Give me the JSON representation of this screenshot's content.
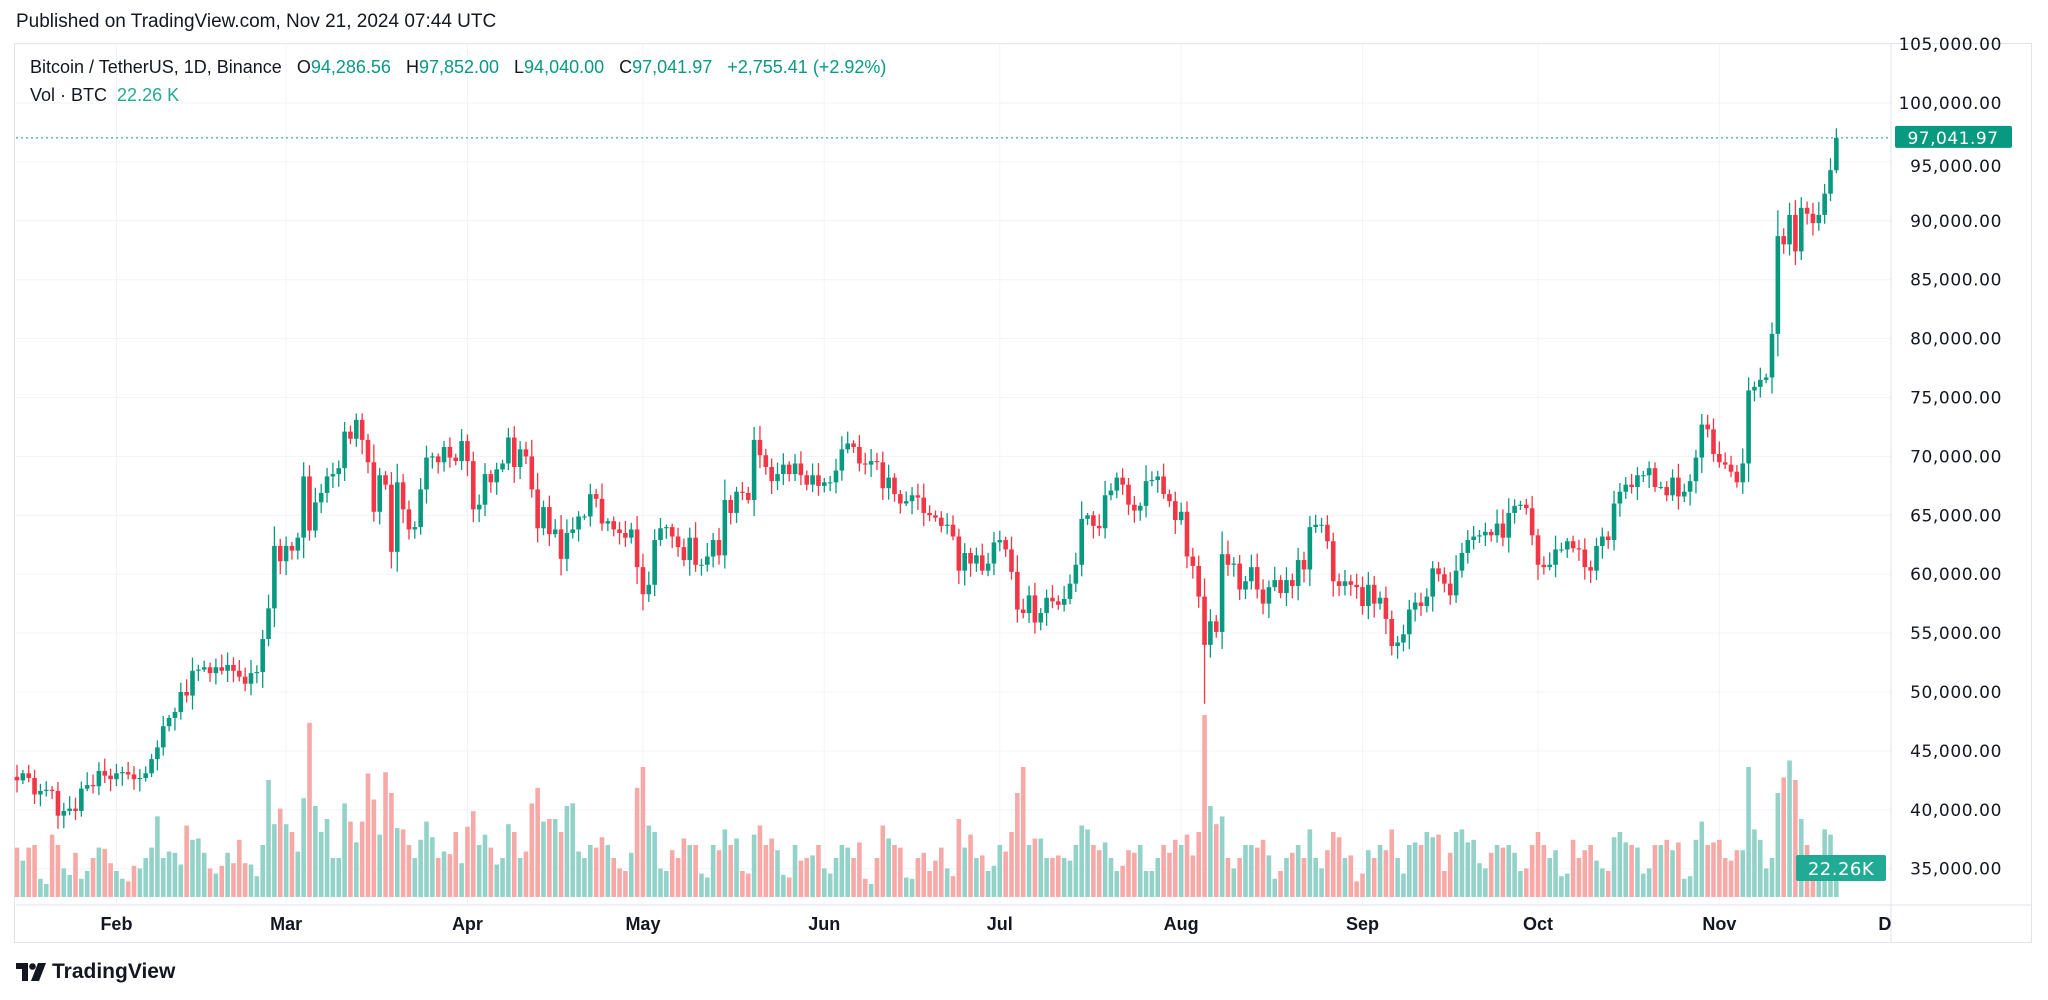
{
  "published": "Published on TradingView.com, Nov 21, 2024 07:44 UTC",
  "legend": {
    "symbol": "Bitcoin / TetherUS, 1D, Binance",
    "o_key": "O",
    "o": "94,286.56",
    "h_key": "H",
    "h": "97,852.00",
    "l_key": "L",
    "l": "94,040.00",
    "c_key": "C",
    "c": "97,041.97",
    "change": "+2,755.41 (+2.92%)",
    "vol_label": "Vol · BTC",
    "vol_value": "22.26 K"
  },
  "footer": {
    "brand": "TradingView"
  },
  "colors": {
    "up": "#089981",
    "down": "#f23645",
    "vol_up": "#92d2c8",
    "vol_down": "#f7a9a7",
    "grid": "#f0f3fa",
    "vol_badge": "#22ab94"
  },
  "chart_data": {
    "type": "candlestick",
    "title": "Bitcoin / TetherUS, 1D, Binance",
    "start_date": "2024-01-15",
    "end_date": "2024-11-21",
    "price_unit": "thousand USDT",
    "volume_unit": "thousand BTC",
    "ylim": [
      35000,
      105000
    ],
    "y_ticks": [
      "105,000.00",
      "100,000.00",
      "95,000.00",
      "90,000.00",
      "85,000.00",
      "80,000.00",
      "75,000.00",
      "70,000.00",
      "65,000.00",
      "60,000.00",
      "55,000.00",
      "50,000.00",
      "45,000.00",
      "40,000.00",
      "35,000.00"
    ],
    "x_ticks": [
      {
        "label": "Feb",
        "date": "2024-02-01"
      },
      {
        "label": "Mar",
        "date": "2024-03-01"
      },
      {
        "label": "Apr",
        "date": "2024-04-01"
      },
      {
        "label": "May",
        "date": "2024-05-01"
      },
      {
        "label": "Jun",
        "date": "2024-06-01"
      },
      {
        "label": "Jul",
        "date": "2024-07-01"
      },
      {
        "label": "Aug",
        "date": "2024-08-01"
      },
      {
        "label": "Sep",
        "date": "2024-09-01"
      },
      {
        "label": "Oct",
        "date": "2024-10-01"
      },
      {
        "label": "Nov",
        "date": "2024-11-01"
      },
      {
        "label": "Dec",
        "date": "2024-12-01"
      }
    ],
    "first_open": 42.8,
    "closes": {
      "Jan": [
        42.5,
        43.1,
        42.7,
        41.3,
        41.6,
        41.7,
        41.6,
        39.5,
        39.9,
        40.1,
        39.9,
        41.8,
        42.1,
        42.0,
        43.3,
        42.9,
        42.6
      ],
      "Feb": [
        43.1,
        43.2,
        43.0,
        42.6,
        42.7,
        43.1,
        44.3,
        45.3,
        47.1,
        47.8,
        48.3,
        50.0,
        49.7,
        51.8,
        51.9,
        52.1,
        51.6,
        52.1,
        51.8,
        52.3,
        51.8,
        51.3,
        50.7,
        51.6,
        51.7,
        54.5,
        57.1,
        62.4,
        61.1
      ],
      "Mar": [
        62.4,
        62.0,
        63.1,
        68.3,
        63.7,
        66.1,
        66.9,
        68.3,
        68.5,
        69.0,
        72.1,
        71.5,
        73.1,
        71.4,
        69.5,
        65.3,
        68.4,
        67.6,
        61.9,
        67.8,
        65.5,
        63.8,
        64.0,
        67.2,
        69.9,
        70.0,
        69.5,
        70.8,
        69.9,
        69.6,
        71.3
      ],
      "Apr": [
        69.6,
        65.5,
        65.9,
        68.5,
        67.8,
        68.9,
        69.4,
        71.6,
        69.1,
        70.6,
        70.0,
        67.2,
        63.9,
        65.7,
        63.4,
        63.8,
        61.3,
        63.5,
        63.8,
        64.9,
        64.9,
        66.8,
        66.4,
        64.3,
        64.5,
        63.8,
        63.5,
        63.1,
        63.8,
        60.6
      ],
      "May": [
        58.3,
        59.1,
        62.9,
        63.9,
        64.0,
        63.2,
        62.3,
        61.2,
        63.1,
        60.8,
        60.8,
        61.5,
        62.9,
        61.6,
        66.3,
        65.2,
        67.0,
        66.9,
        66.3,
        71.4,
        70.1,
        69.1,
        67.9,
        68.5,
        69.3,
        68.5,
        69.4,
        68.4,
        67.6,
        68.4,
        67.5
      ],
      "Jun": [
        67.8,
        67.8,
        68.8,
        70.6,
        71.1,
        70.8,
        69.4,
        69.3,
        69.6,
        69.5,
        67.3,
        68.2,
        66.8,
        66.0,
        66.2,
        66.7,
        66.5,
        65.2,
        65.0,
        64.8,
        64.1,
        64.2,
        63.2,
        60.3,
        61.8,
        60.9,
        61.6,
        60.3,
        60.9,
        62.7
      ],
      "Jul": [
        62.9,
        62.1,
        60.2,
        57.0,
        56.7,
        58.2,
        55.9,
        56.7,
        58.0,
        57.7,
        57.4,
        57.9,
        59.2,
        60.8,
        64.7,
        65.0,
        64.1,
        63.9,
        66.7,
        67.1,
        68.2,
        67.6,
        65.9,
        65.4,
        65.8,
        67.9,
        68.0,
        68.3,
        66.8,
        66.2,
        64.6
      ],
      "Aug": [
        65.3,
        61.5,
        60.7,
        58.1,
        54.0,
        56.0,
        55.1,
        61.7,
        60.8,
        60.9,
        58.7,
        59.4,
        60.6,
        58.7,
        57.5,
        58.9,
        59.5,
        58.4,
        59.5,
        59.0,
        61.2,
        60.4,
        64.0,
        64.2,
        64.2,
        62.8,
        59.4,
        59.0,
        59.4,
        59.1,
        58.9
      ],
      "Sep": [
        57.3,
        59.1,
        57.5,
        58.0,
        56.2,
        53.9,
        54.2,
        54.9,
        57.0,
        57.6,
        57.3,
        58.1,
        60.5,
        60.0,
        59.2,
        58.2,
        60.3,
        61.8,
        62.9,
        63.2,
        63.3,
        63.6,
        63.3,
        64.3,
        63.1,
        65.2,
        65.8,
        65.9,
        65.6,
        63.3
      ],
      "Oct": [
        60.8,
        60.6,
        60.8,
        62.1,
        62.1,
        62.8,
        62.2,
        62.1,
        60.6,
        60.3,
        62.4,
        63.2,
        62.9,
        66.0,
        67.0,
        67.6,
        67.4,
        68.4,
        68.4,
        69.0,
        67.4,
        67.4,
        66.7,
        68.2,
        66.6,
        67.0,
        67.9,
        69.9,
        72.7,
        72.3,
        70.2
      ],
      "Nov": [
        69.5,
        69.3,
        68.7,
        67.8,
        69.4,
        75.6,
        75.9,
        76.5,
        76.7,
        80.4,
        88.7,
        88.0,
        90.5,
        87.4,
        91.1,
        90.6,
        89.8,
        90.5,
        92.3,
        94.3,
        97.04
      ]
    },
    "volumes": {
      "Jan": [
        38,
        28,
        38,
        40,
        14,
        10,
        48,
        40,
        22,
        17,
        34,
        14,
        20,
        30,
        38,
        37,
        26
      ],
      "Feb": [
        20,
        14,
        12,
        24,
        22,
        30,
        38,
        62,
        30,
        35,
        34,
        25,
        55,
        44,
        45,
        34,
        22,
        18,
        24,
        34,
        26,
        44,
        26,
        25,
        16,
        40,
        90,
        56,
        68
      ],
      "Mar": [
        56,
        50,
        35,
        76,
        134,
        70,
        50,
        60,
        30,
        30,
        72,
        58,
        42,
        58,
        95,
        75,
        48,
        96,
        80,
        53,
        52,
        40,
        30,
        44,
        58,
        46,
        30,
        35,
        33,
        50,
        26
      ],
      "Apr": [
        54,
        66,
        40,
        48,
        38,
        25,
        30,
        56,
        50,
        30,
        35,
        72,
        84,
        58,
        60,
        60,
        50,
        70,
        72,
        35,
        30,
        40,
        38,
        46,
        40,
        30,
        22,
        20,
        34,
        84
      ],
      "May": [
        100,
        55,
        50,
        22,
        20,
        36,
        30,
        45,
        40,
        40,
        18,
        15,
        40,
        36,
        52,
        40,
        45,
        20,
        18,
        48,
        55,
        40,
        45,
        36,
        17,
        15,
        40,
        28,
        30,
        32,
        40
      ],
      "Jun": [
        22,
        18,
        30,
        40,
        38,
        30,
        42,
        14,
        10,
        30,
        55,
        45,
        40,
        38,
        15,
        14,
        30,
        34,
        20,
        28,
        38,
        22,
        16,
        60,
        38,
        48,
        30,
        32,
        20,
        24
      ],
      "Jul": [
        40,
        35,
        50,
        80,
        100,
        40,
        45,
        45,
        30,
        30,
        32,
        30,
        28,
        40,
        55,
        52,
        40,
        36,
        42,
        30,
        20,
        24,
        36,
        34,
        40,
        20,
        20,
        30,
        40,
        34,
        44
      ],
      "Aug": [
        40,
        48,
        32,
        50,
        140,
        70,
        56,
        62,
        30,
        22,
        30,
        40,
        40,
        38,
        44,
        32,
        14,
        20,
        30,
        34,
        40,
        30,
        52,
        30,
        22,
        36,
        50,
        46,
        30,
        32,
        12
      ],
      "Sep": [
        18,
        36,
        30,
        40,
        36,
        52,
        30,
        18,
        40,
        42,
        40,
        50,
        46,
        48,
        20,
        34,
        50,
        52,
        42,
        44,
        26,
        22,
        34,
        40,
        38,
        40,
        34,
        20,
        22,
        40
      ],
      "Oct": [
        50,
        40,
        30,
        36,
        16,
        18,
        44,
        30,
        36,
        40,
        28,
        22,
        20,
        46,
        50,
        42,
        40,
        38,
        18,
        22,
        40,
        40,
        44,
        36,
        42,
        14,
        16,
        44,
        58,
        40,
        42
      ],
      "Nov": [
        44,
        30,
        28,
        36,
        36,
        100,
        52,
        44,
        22,
        30,
        80,
        92,
        105,
        90,
        60,
        40,
        28,
        28,
        52,
        48,
        22.26
      ]
    },
    "extreme_overrides": [
      {
        "date": "2024-08-05",
        "low": 49.0
      },
      {
        "date": "2024-11-21",
        "open": 94.28656,
        "high": 97.852,
        "low": 94.04
      }
    ],
    "last_price_label": "97,041.97",
    "volume_label": "22.26K"
  }
}
